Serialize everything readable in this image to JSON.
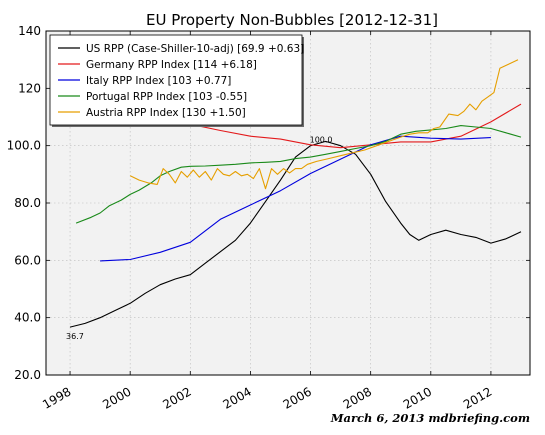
{
  "chart_data": {
    "type": "line",
    "title": "EU Property Non-Bubbles  [2012-12-31]",
    "xlim": [
      1997.2,
      2013.3
    ],
    "ylim": [
      20,
      140
    ],
    "x_ticks": [
      1998,
      2000,
      2002,
      2004,
      2006,
      2008,
      2010,
      2012
    ],
    "x_tick_labels": [
      "1998",
      "2000",
      "2002",
      "2004",
      "2006",
      "2008",
      "2010",
      "2012"
    ],
    "y_ticks": [
      20,
      40,
      60,
      80,
      100,
      120,
      140
    ],
    "y_tick_labels": [
      "20.0",
      "40.0",
      "60.0",
      "80.0",
      "100.0",
      "120",
      "140"
    ],
    "background": "#f2f2f2",
    "grid": true,
    "legend_position": "top-left",
    "series": [
      {
        "name": "US RPP (Case-Shiller-10-adj) [69.9 +0.63]",
        "color": "#000000",
        "x": [
          1998.0,
          1998.5,
          1999.0,
          1999.5,
          2000.0,
          2000.5,
          2001.0,
          2001.5,
          2002.0,
          2002.5,
          2003.0,
          2003.5,
          2004.0,
          2004.5,
          2005.0,
          2005.5,
          2006.0,
          2006.5,
          2007.0,
          2007.5,
          2008.0,
          2008.5,
          2009.0,
          2009.3,
          2009.6,
          2010.0,
          2010.5,
          2011.0,
          2011.5,
          2012.0,
          2012.5,
          2013.0
        ],
        "y": [
          36.7,
          38.0,
          40.0,
          42.5,
          45.0,
          48.5,
          51.5,
          53.5,
          55.0,
          59.0,
          63.0,
          67.0,
          73.0,
          80.5,
          88.0,
          96.0,
          100.0,
          101.5,
          100.0,
          97.0,
          90.0,
          80.5,
          73.0,
          69.0,
          67.0,
          69.0,
          70.5,
          69.0,
          68.0,
          66.0,
          67.5,
          70.0
        ]
      },
      {
        "name": "Germany RPP Index [114 +6.18]",
        "color": "#e31a1c",
        "x": [
          1999.0,
          2000.0,
          2001.0,
          2002.0,
          2003.0,
          2004.0,
          2005.0,
          2006.0,
          2007.0,
          2008.0,
          2009.0,
          2010.0,
          2011.0,
          2012.0,
          2013.0
        ],
        "y": [
          107.3,
          108.3,
          108.3,
          107.5,
          105.3,
          103.3,
          102.3,
          100.3,
          99.3,
          100.3,
          101.3,
          101.3,
          103.3,
          108.3,
          114.5
        ]
      },
      {
        "name": "Italy RPP Index [103 +0.77]",
        "color": "#0000dd",
        "x": [
          1999.0,
          2000.0,
          2001.0,
          2002.0,
          2003.0,
          2004.0,
          2005.0,
          2006.0,
          2007.0,
          2008.0,
          2009.0,
          2010.0,
          2011.0,
          2012.0
        ],
        "y": [
          59.8,
          60.3,
          62.8,
          66.3,
          74.3,
          79.3,
          84.3,
          90.3,
          95.3,
          100.3,
          103.3,
          102.6,
          102.3,
          102.8
        ]
      },
      {
        "name": "Portugal RPP Index [103 -0.55]",
        "color": "#1a8a1a",
        "x": [
          1998.2,
          1998.7,
          1999.0,
          1999.3,
          1999.7,
          2000.0,
          2000.3,
          2000.7,
          2001.0,
          2001.3,
          2001.7,
          2002.0,
          2002.5,
          2003.0,
          2003.5,
          2004.0,
          2004.5,
          2005.0,
          2005.5,
          2006.0,
          2006.5,
          2007.0,
          2007.5,
          2008.0,
          2008.5,
          2009.0,
          2009.5,
          2010.0,
          2010.5,
          2011.0,
          2011.5,
          2012.0,
          2012.5,
          2013.0
        ],
        "y": [
          73.0,
          75.0,
          76.5,
          79.0,
          81.0,
          83.0,
          84.5,
          87.0,
          89.5,
          91.0,
          92.5,
          92.8,
          92.9,
          93.2,
          93.5,
          94.0,
          94.2,
          94.5,
          95.5,
          96.0,
          97.0,
          98.0,
          99.0,
          100.0,
          101.5,
          104.0,
          105.0,
          105.5,
          106.0,
          107.0,
          106.5,
          106.0,
          104.5,
          103.0
        ]
      },
      {
        "name": "Austria RPP Index [130 +1.50]",
        "color": "#e69f00",
        "x": [
          2000.0,
          2000.3,
          2000.6,
          2000.9,
          2001.1,
          2001.3,
          2001.5,
          2001.7,
          2001.9,
          2002.1,
          2002.3,
          2002.5,
          2002.7,
          2002.9,
          2003.1,
          2003.3,
          2003.5,
          2003.7,
          2003.9,
          2004.1,
          2004.3,
          2004.5,
          2004.7,
          2004.9,
          2005.1,
          2005.3,
          2005.5,
          2005.7,
          2005.9,
          2006.2,
          2006.6,
          2007.0,
          2007.4,
          2007.8,
          2008.2,
          2008.6,
          2009.0,
          2009.3,
          2009.6,
          2009.9,
          2010.1,
          2010.3,
          2010.6,
          2010.9,
          2011.1,
          2011.3,
          2011.5,
          2011.7,
          2011.9,
          2012.1,
          2012.3,
          2012.6,
          2012.9
        ],
        "y": [
          89.5,
          88.0,
          87.0,
          86.5,
          92.0,
          90.0,
          87.0,
          91.0,
          89.0,
          91.5,
          89.0,
          91.0,
          88.0,
          92.0,
          90.0,
          89.5,
          91.0,
          89.5,
          90.0,
          88.5,
          92.0,
          85.0,
          92.0,
          90.0,
          92.0,
          90.5,
          92.0,
          92.0,
          93.5,
          94.5,
          95.5,
          96.5,
          97.5,
          98.5,
          100.0,
          101.5,
          103.0,
          104.0,
          104.5,
          104.5,
          106.0,
          106.5,
          111.0,
          110.5,
          112.0,
          114.5,
          112.5,
          115.5,
          117.0,
          118.5,
          127.0,
          128.5,
          130.0
        ]
      }
    ],
    "annotations": [
      {
        "text": "36.7",
        "x": 1998.0,
        "y": 36.7,
        "anchor": "start"
      },
      {
        "text": "100.0",
        "x": 2006.35,
        "y": 100.0,
        "anchor": "middle"
      }
    ]
  },
  "footer": {
    "credit": "March 6, 2013  mdbriefing.com"
  }
}
